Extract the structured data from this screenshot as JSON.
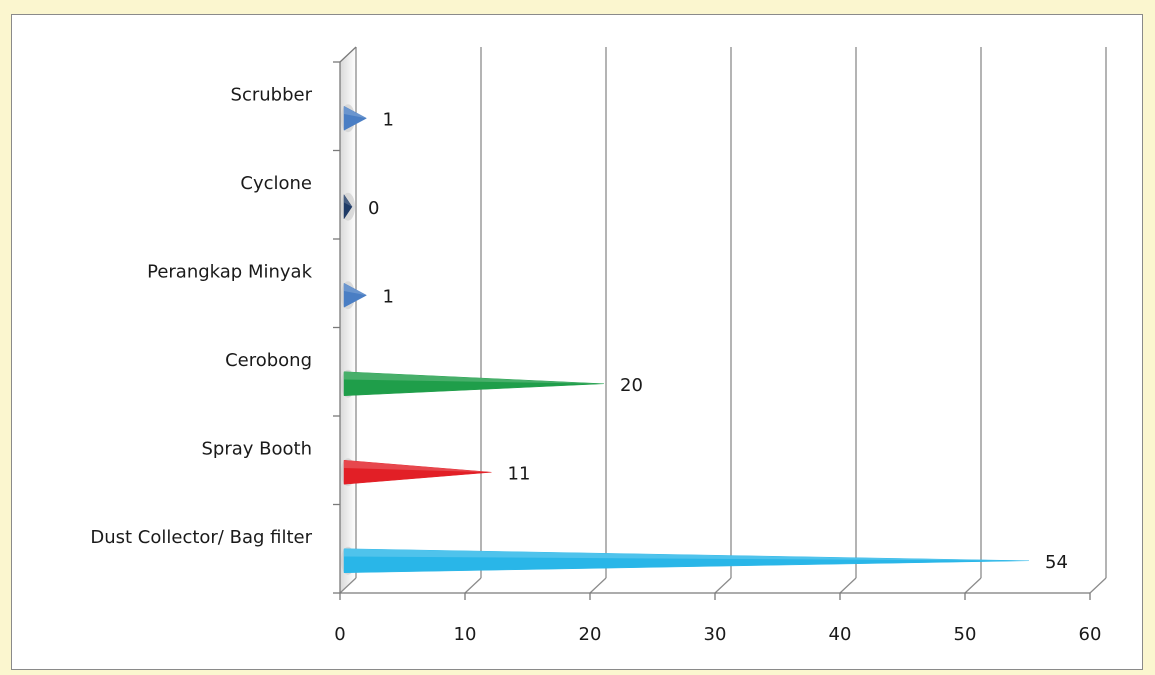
{
  "chart_data": {
    "type": "bar",
    "orientation": "horizontal",
    "categories": [
      "Dust Collector/ Bag filter",
      "Spray Booth",
      "Cerobong",
      "Perangkap Minyak",
      "Cyclone",
      "Scrubber"
    ],
    "values": [
      54,
      11,
      20,
      1,
      0,
      1
    ],
    "data_labels": [
      "54",
      "11",
      "20",
      "1",
      "0",
      "1"
    ],
    "colors": [
      "#29b6e8",
      "#e21f26",
      "#1f9e4a",
      "#4a7ec4",
      "#1f3b66",
      "#4a7ec4"
    ],
    "xlim": [
      0,
      60
    ],
    "x_ticks": [
      0,
      10,
      20,
      30,
      40,
      50,
      60
    ],
    "x_tick_labels": [
      "0",
      "10",
      "20",
      "30",
      "40",
      "50",
      "60"
    ],
    "grid": true,
    "legend": "none",
    "title": "",
    "xlabel": "",
    "ylabel": ""
  }
}
